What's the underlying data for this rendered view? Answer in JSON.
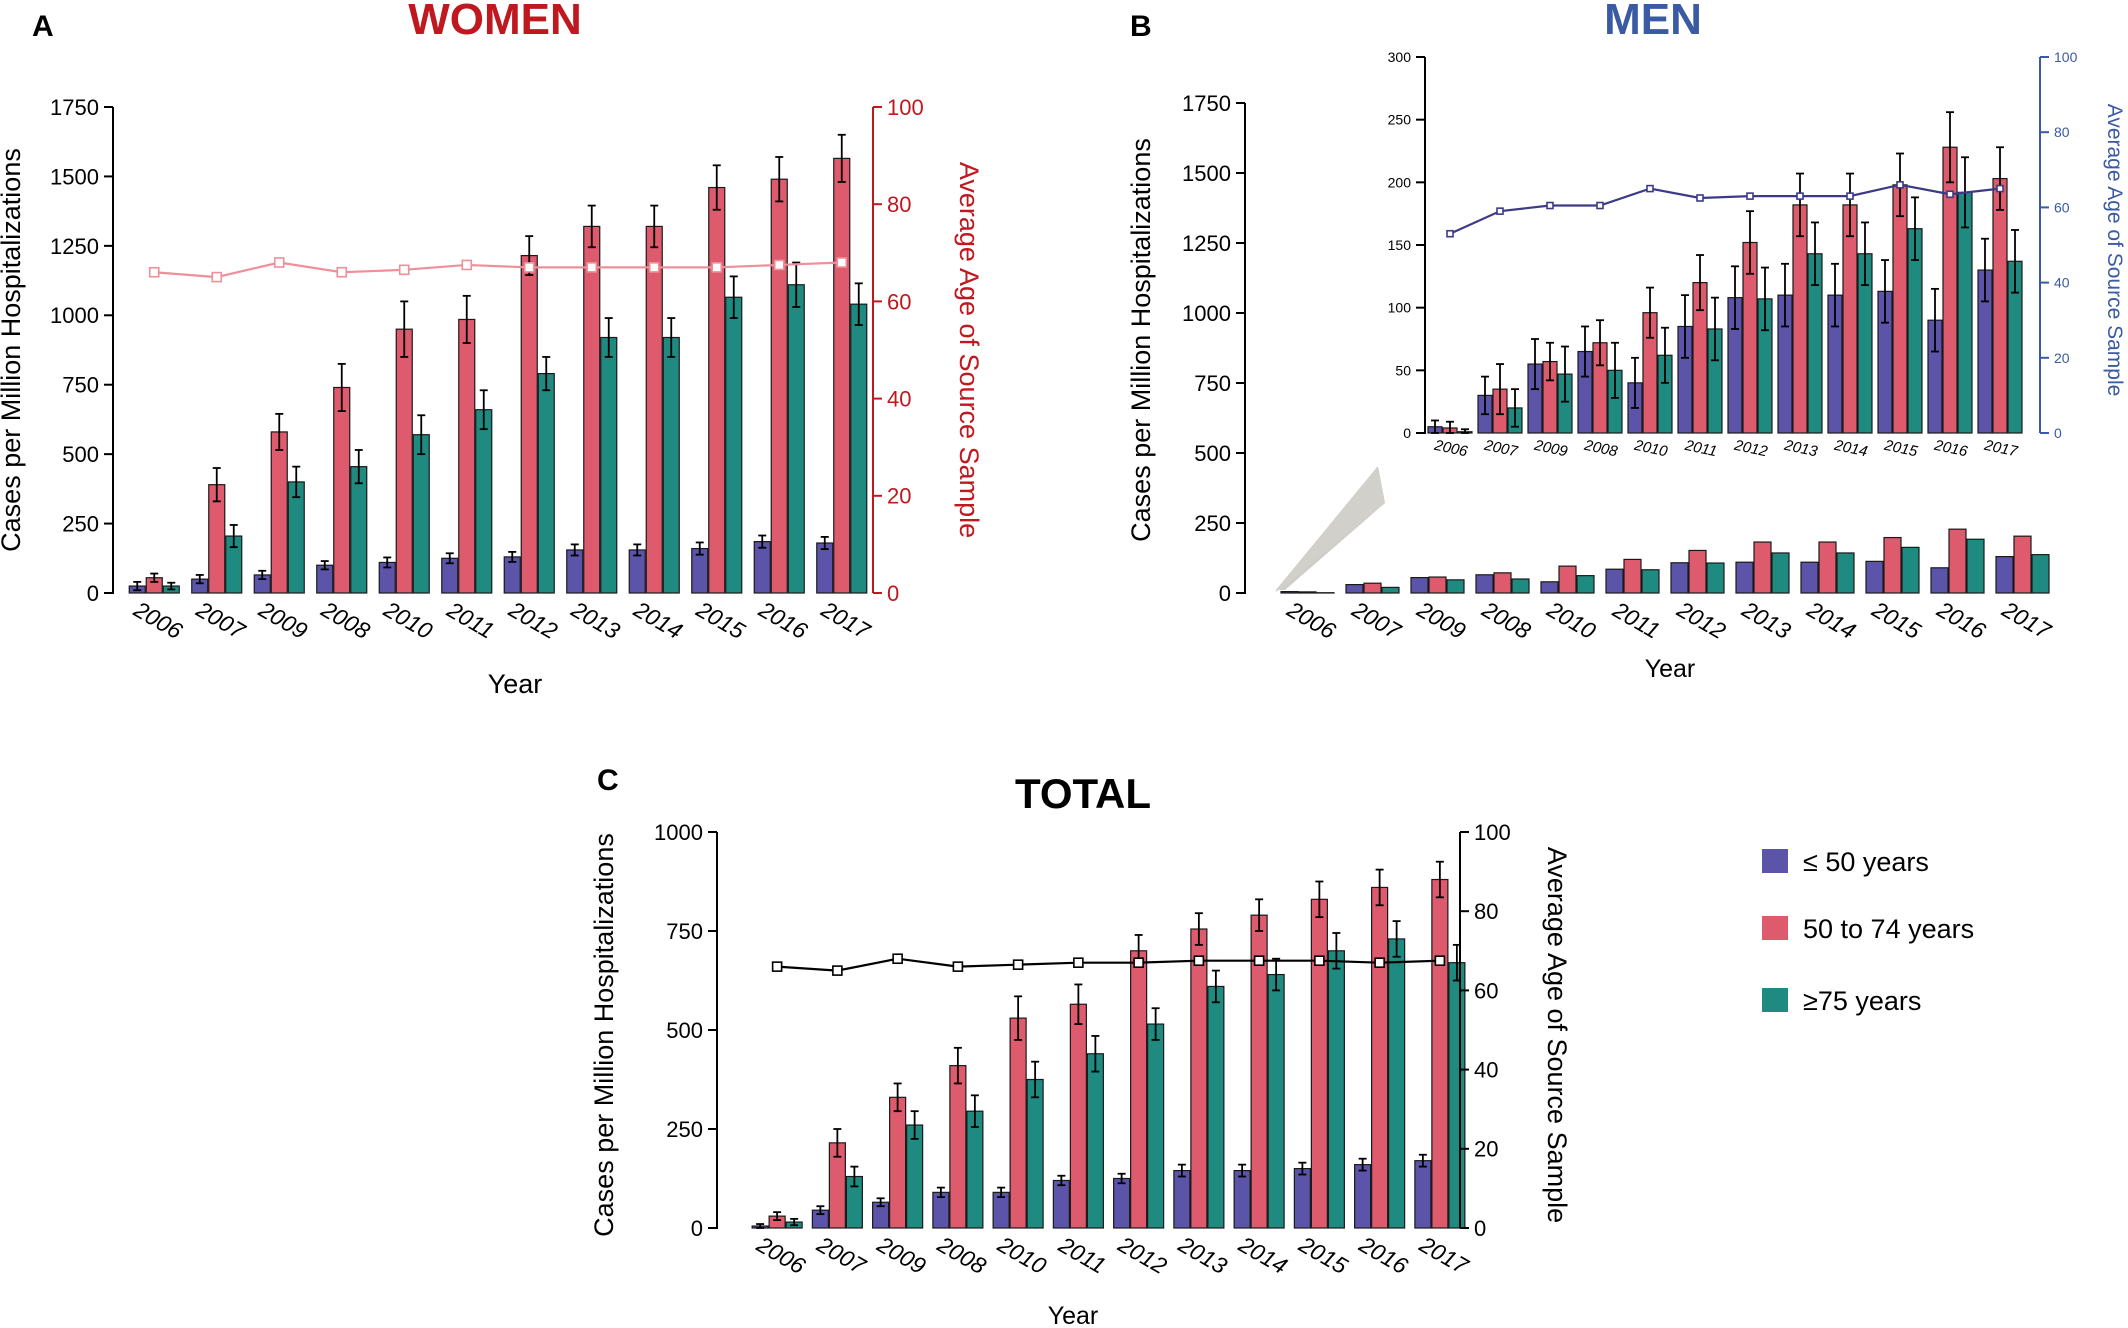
{
  "colors": {
    "le50": "#5b54a8",
    "mid": "#de5a6d",
    "ge75": "#1f8a80",
    "women_title": "#c0181f",
    "women_line": "#ef8f99",
    "men_title": "#3a5aa3",
    "men_line": "#3c3a86",
    "black": "#000000"
  },
  "panels": {
    "a": {
      "letter": "A",
      "title": "WOMEN",
      "xlabel": "Year",
      "ylabel": "Cases per Million Hospitalizations",
      "y2label": "Average Age of Source Sample"
    },
    "b": {
      "letter": "B",
      "title": "MEN",
      "xlabel": "Year",
      "ylabel": "Cases per Million Hospitalizations",
      "y2label": "Average Age of Source Sample"
    },
    "c": {
      "letter": "C",
      "title": "TOTAL",
      "xlabel": "Year",
      "ylabel": "Cases per Million Hospitalizations",
      "y2label": "Average Age of Source Sample"
    }
  },
  "legend": [
    {
      "label": "≤ 50 years",
      "color_key": "le50"
    },
    {
      "label": "50 to 74 years",
      "color_key": "mid"
    },
    {
      "label": "≥75 years",
      "color_key": "ge75"
    }
  ],
  "chart_data": [
    {
      "id": "women",
      "type": "bar",
      "title": "WOMEN",
      "xlabel": "Year",
      "ylabel": "Cases per Million Hospitalizations",
      "y2label": "Average Age of Source Sample",
      "categories": [
        "2006",
        "2007",
        "2009",
        "2008",
        "2010",
        "2011",
        "2012",
        "2013",
        "2014",
        "2015",
        "2016",
        "2017"
      ],
      "ylim": [
        0,
        1750
      ],
      "yticks": [
        0,
        250,
        500,
        750,
        1000,
        1250,
        1500,
        1750
      ],
      "y2lim": [
        0,
        100
      ],
      "y2ticks": [
        0,
        20,
        40,
        60,
        80,
        100
      ],
      "series": [
        {
          "name": "≤ 50 years",
          "values": [
            25,
            50,
            65,
            100,
            110,
            125,
            130,
            155,
            155,
            160,
            185,
            180
          ],
          "errors": [
            15,
            15,
            15,
            15,
            18,
            18,
            18,
            20,
            20,
            22,
            22,
            22
          ]
        },
        {
          "name": "50 to 74 years",
          "values": [
            55,
            390,
            580,
            740,
            950,
            985,
            1215,
            1320,
            1320,
            1460,
            1490,
            1565
          ],
          "errors": [
            15,
            60,
            65,
            85,
            100,
            85,
            70,
            75,
            75,
            80,
            80,
            85
          ]
        },
        {
          "name": "≥75 years",
          "values": [
            25,
            205,
            400,
            455,
            570,
            660,
            790,
            920,
            920,
            1065,
            1110,
            1040
          ],
          "errors": [
            12,
            40,
            55,
            60,
            70,
            70,
            60,
            70,
            70,
            75,
            80,
            75
          ]
        }
      ],
      "avg_age": [
        66,
        65,
        68,
        66,
        66.5,
        67.5,
        67,
        67,
        67,
        67,
        67.5,
        68
      ]
    },
    {
      "id": "men",
      "type": "bar",
      "title": "MEN",
      "xlabel": "Year",
      "ylabel": "Cases per Million Hospitalizations",
      "categories": [
        "2006",
        "2007",
        "2009",
        "2008",
        "2010",
        "2011",
        "2012",
        "2013",
        "2014",
        "2015",
        "2016",
        "2017"
      ],
      "ylim": [
        0,
        1750
      ],
      "yticks": [
        0,
        250,
        500,
        750,
        1000,
        1250,
        1500,
        1750
      ],
      "series": [
        {
          "name": "≤ 50 years",
          "values": [
            5,
            30,
            55,
            65,
            40,
            85,
            108,
            110,
            110,
            113,
            90,
            130
          ]
        },
        {
          "name": "50 to 74 years",
          "values": [
            4,
            35,
            57,
            72,
            96,
            120,
            152,
            182,
            182,
            198,
            228,
            203
          ]
        },
        {
          "name": "≥75 years",
          "values": [
            1,
            20,
            47,
            50,
            62,
            83,
            107,
            143,
            143,
            163,
            192,
            137
          ]
        }
      ],
      "inset": {
        "ylim": [
          0,
          300
        ],
        "yticks": [
          0,
          50,
          100,
          150,
          200,
          250,
          300
        ],
        "y2label": "Average Age of Source Sample",
        "y2lim": [
          0,
          100
        ],
        "y2ticks": [
          0,
          20,
          40,
          60,
          80,
          100
        ],
        "errors": [
          [
            5,
            15,
            20,
            20,
            20,
            25,
            25,
            25,
            25,
            25,
            25,
            25
          ],
          [
            5,
            20,
            15,
            18,
            20,
            22,
            25,
            25,
            25,
            25,
            28,
            25
          ],
          [
            2,
            15,
            22,
            22,
            22,
            25,
            25,
            25,
            25,
            25,
            28,
            25
          ]
        ],
        "avg_age": [
          53,
          59,
          60.5,
          60.5,
          65,
          62.5,
          63,
          63,
          63,
          66,
          63.5,
          65
        ]
      }
    },
    {
      "id": "total",
      "type": "bar",
      "title": "TOTAL",
      "xlabel": "Year",
      "ylabel": "Cases per Million Hospitalizations",
      "y2label": "Average Age of Source Sample",
      "categories": [
        "2006",
        "2007",
        "2009",
        "2008",
        "2010",
        "2011",
        "2012",
        "2013",
        "2014",
        "2015",
        "2016",
        "2017"
      ],
      "ylim": [
        0,
        1000
      ],
      "yticks": [
        0,
        250,
        500,
        750,
        1000
      ],
      "y2lim": [
        0,
        100
      ],
      "y2ticks": [
        0,
        20,
        40,
        60,
        80,
        100
      ],
      "series": [
        {
          "name": "≤ 50 years",
          "values": [
            5,
            45,
            65,
            90,
            90,
            120,
            125,
            145,
            145,
            150,
            160,
            170
          ],
          "errors": [
            5,
            10,
            10,
            12,
            12,
            12,
            12,
            15,
            15,
            15,
            15,
            15
          ]
        },
        {
          "name": "50 to 74 years",
          "values": [
            30,
            215,
            330,
            410,
            530,
            565,
            700,
            755,
            790,
            830,
            860,
            880
          ],
          "errors": [
            10,
            35,
            35,
            45,
            55,
            50,
            40,
            40,
            40,
            45,
            45,
            45
          ]
        },
        {
          "name": "≥75 years",
          "values": [
            15,
            130,
            260,
            295,
            375,
            440,
            515,
            610,
            640,
            700,
            730,
            670
          ],
          "errors": [
            8,
            25,
            35,
            40,
            45,
            45,
            40,
            40,
            40,
            45,
            45,
            45
          ]
        }
      ],
      "avg_age": [
        66,
        65,
        68,
        66,
        66.5,
        67,
        67,
        67.5,
        67.5,
        67.5,
        67,
        67.5
      ]
    }
  ]
}
